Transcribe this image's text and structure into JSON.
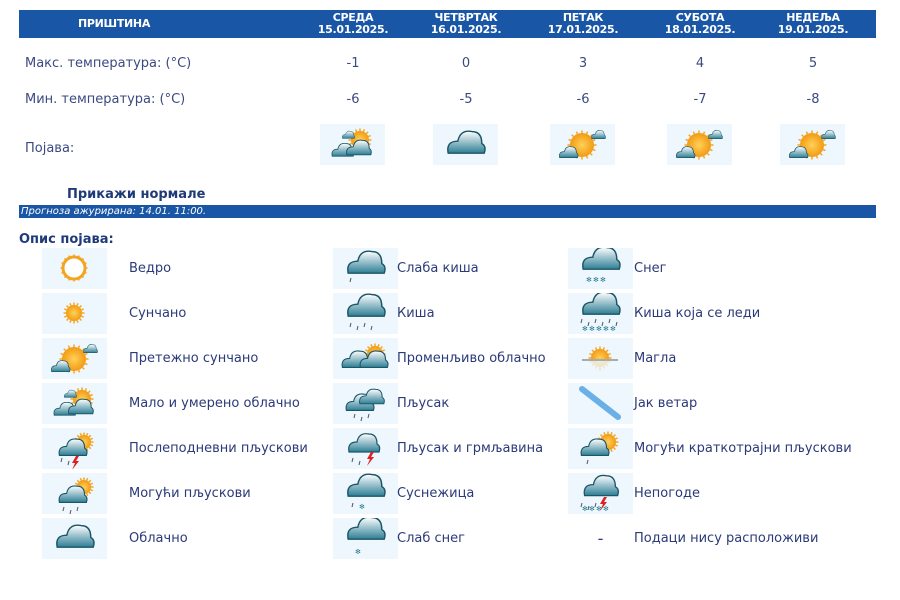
{
  "header": {
    "city": "ПРИШТИНА",
    "days": [
      {
        "day": "СРЕДА",
        "date": "15.01.2025.",
        "max": "-1",
        "min": "-6",
        "icon": "partly-cloudy"
      },
      {
        "day": "ЧЕТВРТАК",
        "date": "16.01.2025.",
        "max": "0",
        "min": "-5",
        "icon": "cloudy"
      },
      {
        "day": "ПЕТАК",
        "date": "17.01.2025.",
        "max": "3",
        "min": "-6",
        "icon": "mostly-sunny"
      },
      {
        "day": "СУБОТА",
        "date": "18.01.2025.",
        "max": "4",
        "min": "-7",
        "icon": "mostly-sunny"
      },
      {
        "day": "НЕДЕЉА",
        "date": "19.01.2025.",
        "max": "5",
        "min": "-8",
        "icon": "mostly-sunny"
      }
    ]
  },
  "rows": {
    "max_label": "Макс. температура: (°C)",
    "min_label": "Мин. температура: (°C)",
    "icon_label": "Појава:"
  },
  "show_normals": "Прикажи нормале",
  "updated": "Прогноза ажурирана:  14.01. 11:00.",
  "legend_title": "Опис појава:",
  "legend": [
    [
      {
        "icon": "clear",
        "text": "Ведро"
      },
      {
        "icon": "sunny",
        "text": "Сунчано"
      },
      {
        "icon": "mostly-sunny",
        "text": "Претежно сунчано"
      },
      {
        "icon": "partly-cloudy",
        "text": "Мало и умерено облачно"
      },
      {
        "icon": "afternoon-showers",
        "text": "Послеподневни пљускови"
      },
      {
        "icon": "possible-showers",
        "text": "Могући пљускови"
      },
      {
        "icon": "cloudy",
        "text": "Облачно"
      }
    ],
    [
      {
        "icon": "light-rain",
        "text": "Слаба киша"
      },
      {
        "icon": "rain",
        "text": "Киша"
      },
      {
        "icon": "variable-cloudy",
        "text": "Променљиво облачно"
      },
      {
        "icon": "shower",
        "text": "Пљусак"
      },
      {
        "icon": "thunderstorm",
        "text": "Пљусак и грмљавина"
      },
      {
        "icon": "sleet",
        "text": "Суснежица"
      },
      {
        "icon": "light-snow",
        "text": "Слаб снег"
      }
    ],
    [
      {
        "icon": "snow",
        "text": "Снег"
      },
      {
        "icon": "freezing-rain",
        "text": "Киша која се леди"
      },
      {
        "icon": "fog",
        "text": "Магла"
      },
      {
        "icon": "strong-wind",
        "text": "Јак ветар"
      },
      {
        "icon": "brief-showers",
        "text": "Могући краткотрајни пљускови"
      },
      {
        "icon": "storm",
        "text": "Непогоде"
      },
      {
        "icon": "none",
        "text": "Подаци нису расположиви",
        "dash": "-"
      }
    ]
  ],
  "colors": {
    "header": "#1a56a6",
    "sun": "#f7a21b",
    "cloud": "#2f7f96"
  }
}
